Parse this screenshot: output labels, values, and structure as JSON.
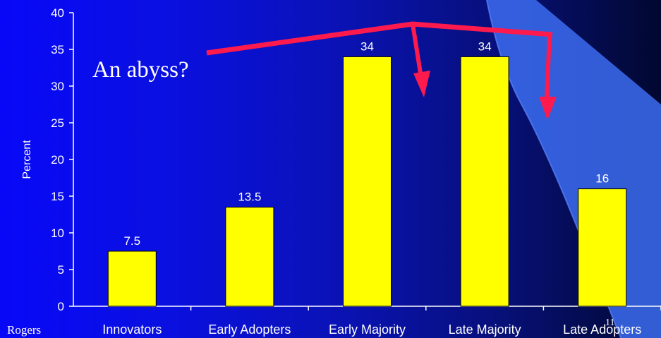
{
  "chart_data": {
    "type": "bar",
    "categories": [
      "Innovators",
      "Early Adopters",
      "Early Majority",
      "Late Majority",
      "Late Adopters"
    ],
    "values": [
      7.5,
      13.5,
      34,
      34,
      16
    ],
    "value_labels": [
      "7.5",
      "13.5",
      "34",
      "34",
      "16"
    ],
    "title": "",
    "xlabel": "",
    "ylabel": "Percent",
    "ylim": [
      0,
      40
    ],
    "yticks": [
      0,
      5,
      10,
      15,
      20,
      25,
      30,
      35,
      40
    ],
    "grid": false,
    "bar_color": "#ffff00"
  },
  "annotation": {
    "text": "An abyss?",
    "arrow_color": "#ff1a4d"
  },
  "footer": {
    "source": "Rogers",
    "slide_number": "11"
  },
  "colors": {
    "background_left": "#0808f8",
    "background_right": "#020830",
    "swoosh": "#3c6cf0",
    "text": "#ffffff"
  }
}
